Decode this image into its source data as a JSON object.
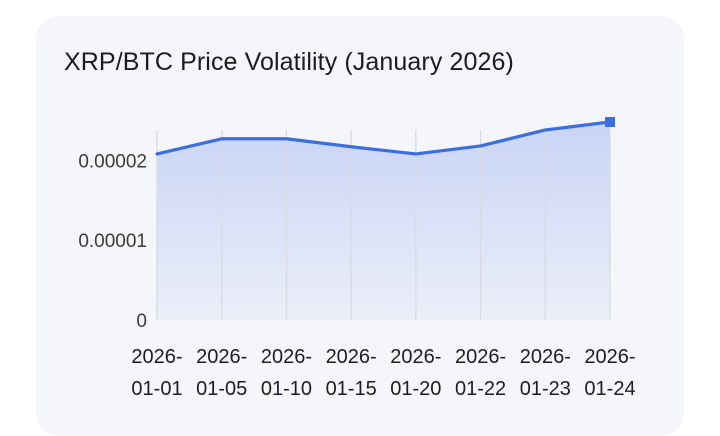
{
  "chart_data": {
    "type": "area",
    "title": "XRP/BTC Price Volatility (January 2026)",
    "xlabel": "",
    "ylabel": "",
    "categories": [
      "2026-01-01",
      "2026-01-05",
      "2026-01-10",
      "2026-01-15",
      "2026-01-20",
      "2026-01-22",
      "2026-01-23",
      "2026-01-24"
    ],
    "x_label_lines": [
      [
        "2026-",
        "01-01"
      ],
      [
        "2026-",
        "01-05"
      ],
      [
        "2026-",
        "01-10"
      ],
      [
        "2026-",
        "01-15"
      ],
      [
        "2026-",
        "01-20"
      ],
      [
        "2026-",
        "01-22"
      ],
      [
        "2026-",
        "01-23"
      ],
      [
        "2026-",
        "01-24"
      ]
    ],
    "series": [
      {
        "name": "XRP/BTC",
        "values": [
          2.08e-05,
          2.27e-05,
          2.27e-05,
          2.17e-05,
          2.08e-05,
          2.18e-05,
          2.38e-05,
          2.48e-05
        ]
      }
    ],
    "yticks": [
      0,
      1e-05,
      2e-05
    ],
    "ytick_labels": [
      "0",
      "0.00001",
      "0.00002"
    ],
    "ylim": [
      0,
      2.505e-05
    ],
    "grid": "vertical",
    "legend": "none",
    "colors": {
      "line": "#3b6fe0",
      "fill_top": "#c9d4f5",
      "fill_bottom": "#eceff9",
      "grid": "#d8dbe3",
      "marker": "#3b6fe0"
    }
  }
}
